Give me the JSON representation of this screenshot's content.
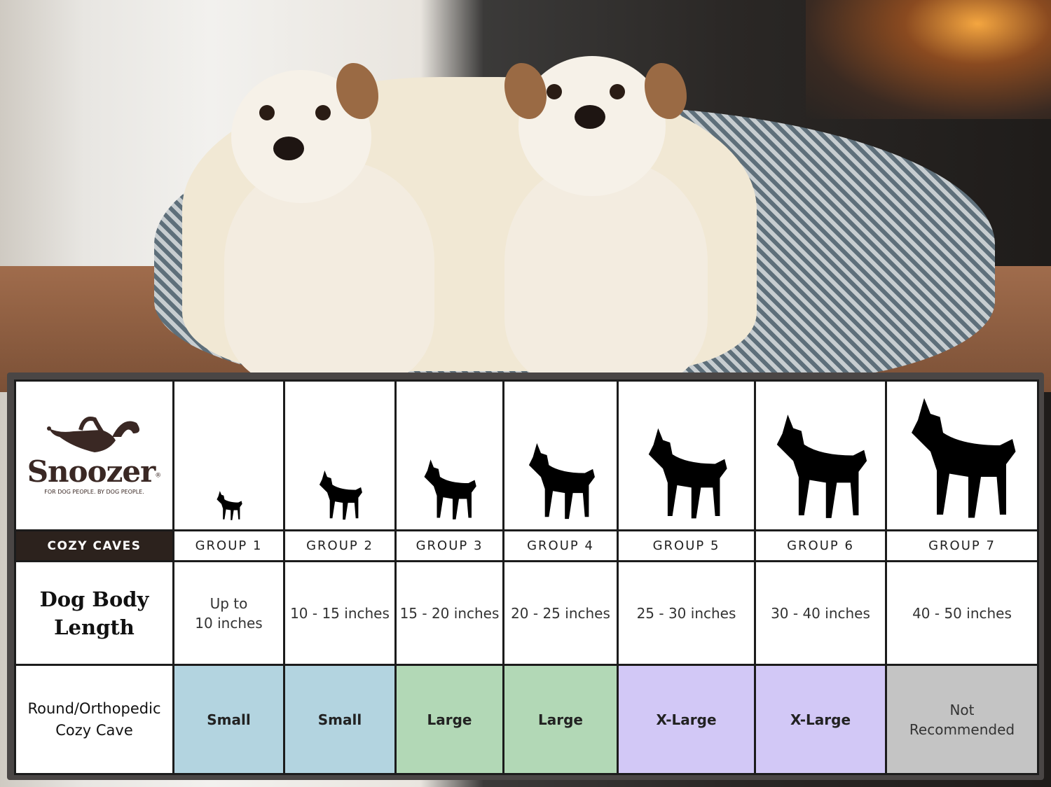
{
  "brand": {
    "name": "Snoozer",
    "registered": "®",
    "tagline": "FOR DOG PEOPLE. BY DOG PEOPLE.",
    "product_line": "COZY CAVES"
  },
  "rows": {
    "length_label": "Dog Body Length",
    "length_label_lines": [
      "Dog Body",
      "Length"
    ],
    "bed_label_lines": [
      "Round/Orthopedic",
      "Cozy Cave"
    ]
  },
  "groups": [
    {
      "label": "GROUP 1",
      "length": [
        "Up to",
        "10 inches"
      ],
      "size": "Small",
      "color": "#b3d4e0",
      "silhouette": "chihuahua"
    },
    {
      "label": "GROUP 2",
      "length": [
        "10 - 15 inches"
      ],
      "size": "Small",
      "color": "#b3d4e0",
      "silhouette": "pomeranian"
    },
    {
      "label": "GROUP 3",
      "length": [
        "15 - 20 inches"
      ],
      "size": "Large",
      "color": "#b2d8b6",
      "silhouette": "boston-terrier"
    },
    {
      "label": "GROUP 4",
      "length": [
        "20 - 25 inches"
      ],
      "size": "Large",
      "color": "#b2d8b6",
      "silhouette": "shiba"
    },
    {
      "label": "GROUP 5",
      "length": [
        "25 - 30 inches"
      ],
      "size": "X-Large",
      "color": "#d2c8f6",
      "silhouette": "golden-retriever"
    },
    {
      "label": "GROUP 6",
      "length": [
        "30 - 40 inches"
      ],
      "size": "X-Large",
      "color": "#d2c8f6",
      "silhouette": "doberman"
    },
    {
      "label": "GROUP 7",
      "length": [
        "40 - 50 inches"
      ],
      "size": [
        "Not",
        "Recommended"
      ],
      "color": "#c4c4c4",
      "silhouette": "great-dane"
    }
  ]
}
